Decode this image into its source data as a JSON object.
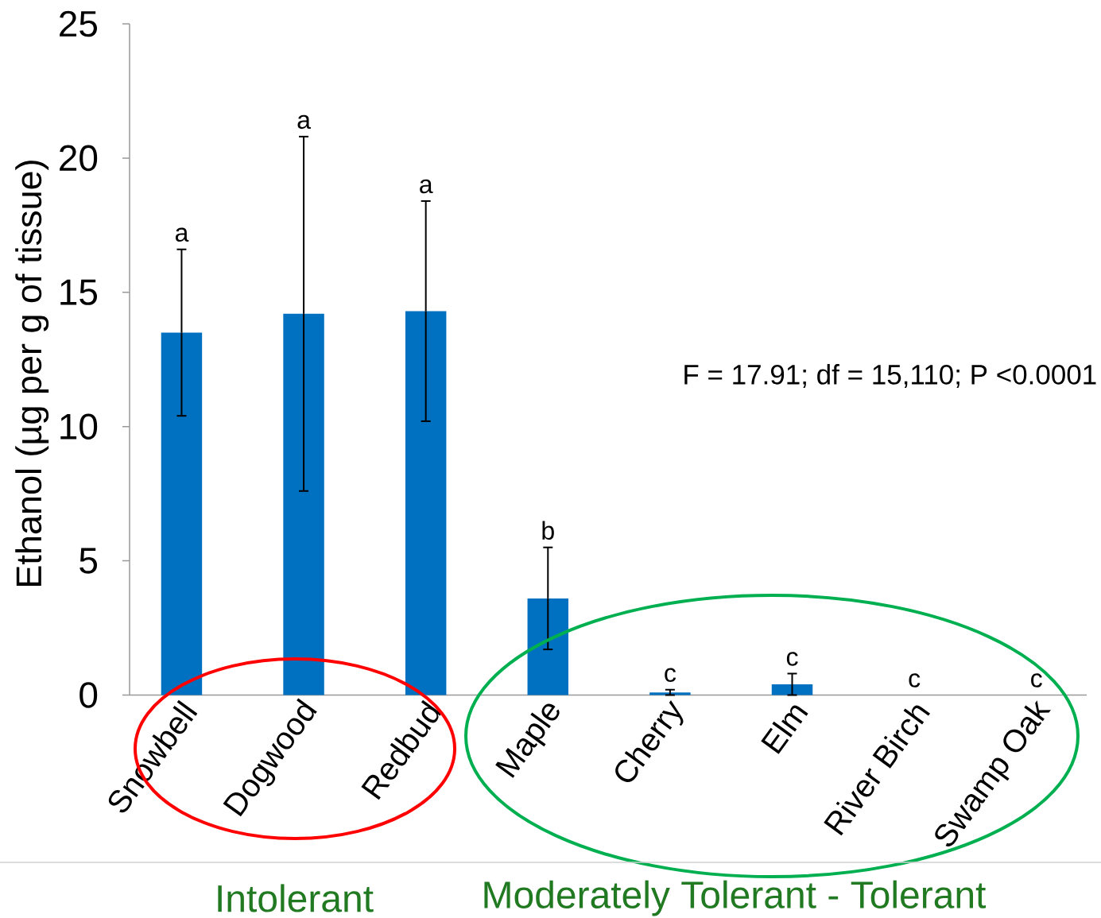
{
  "chart_data": {
    "type": "bar",
    "categories": [
      "Snowbell",
      "Dogwood",
      "Redbud",
      "Maple",
      "Cherry",
      "Elm",
      "River Birch",
      "Swamp Oak"
    ],
    "values": [
      13.5,
      14.2,
      14.3,
      3.6,
      0.1,
      0.4,
      0,
      0
    ],
    "errors": [
      3.1,
      6.6,
      4.1,
      1.9,
      0.1,
      0.4,
      null,
      null
    ],
    "color": "#0070c0",
    "ylabel": "Ethanol (µg per g of tissue)",
    "ylim": [
      0,
      25
    ],
    "yticks": [
      0,
      5,
      10,
      15,
      20,
      25
    ],
    "annotations": [
      "a",
      "a",
      "a",
      "b",
      "c",
      "c",
      "c",
      "c",
      "F = 17.91; df = 15,110; P <0.0001",
      "Intolerant",
      "Moderately Tolerant - Tolerant"
    ]
  }
}
